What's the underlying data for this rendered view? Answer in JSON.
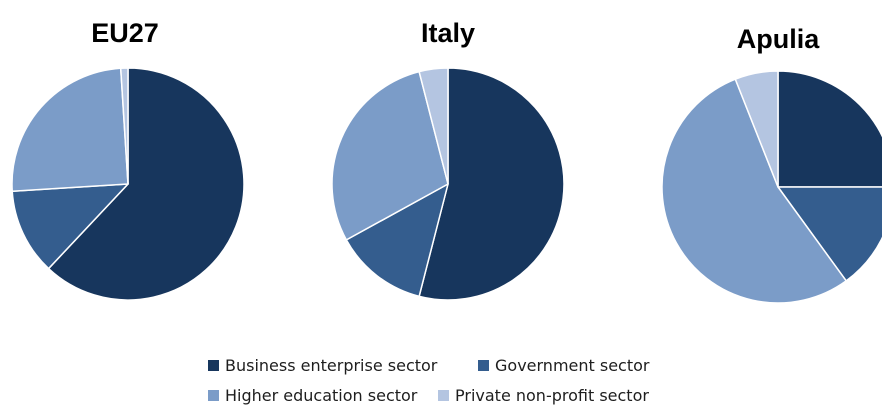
{
  "chart_data": [
    {
      "type": "pie",
      "title": "EU27",
      "labels": [
        "Business enterprise sector",
        "Government sector",
        "Higher education sector",
        "Private non-profit sector"
      ],
      "values": [
        62,
        12,
        25,
        1
      ]
    },
    {
      "type": "pie",
      "title": "Italy",
      "labels": [
        "Business enterprise sector",
        "Government sector",
        "Higher education sector",
        "Private non-profit sector"
      ],
      "values": [
        54,
        13,
        29,
        4
      ]
    },
    {
      "type": "pie",
      "title": "Apulia",
      "labels": [
        "Business enterprise sector",
        "Government sector",
        "Higher education sector",
        "Private non-profit sector"
      ],
      "values": [
        25,
        15,
        54,
        6
      ]
    }
  ],
  "legend": {
    "items": [
      {
        "label": "Business enterprise sector",
        "color": "#17365d"
      },
      {
        "label": "Government sector",
        "color": "#345d8e"
      },
      {
        "label": "Higher education sector",
        "color": "#7b9cc8"
      },
      {
        "label": "Private non-profit sector",
        "color": "#b4c5e1"
      }
    ]
  }
}
